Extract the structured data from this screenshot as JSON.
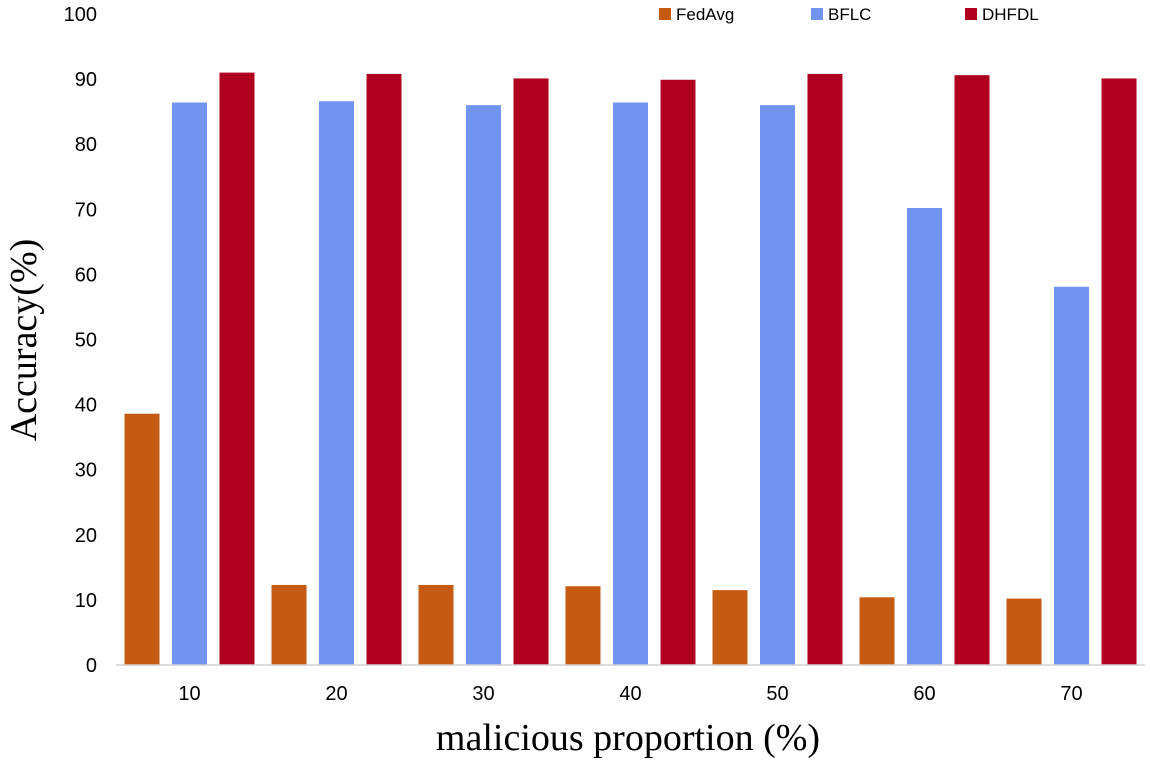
{
  "chart_data": {
    "type": "bar",
    "title": "",
    "xlabel": "malicious proportion (%)",
    "ylabel": "Accuracy(%)",
    "categories": [
      "10",
      "20",
      "30",
      "40",
      "50",
      "60",
      "70"
    ],
    "ylim": [
      0,
      100
    ],
    "yticks": [
      0,
      10,
      20,
      30,
      40,
      50,
      60,
      70,
      80,
      90,
      100
    ],
    "legend_position": "top-right",
    "series": [
      {
        "name": "FedAvg",
        "color": "#c55a11",
        "values": [
          38.6,
          12.3,
          12.3,
          12.1,
          11.5,
          10.4,
          10.2
        ]
      },
      {
        "name": "BFLC",
        "color": "#7094f0",
        "values": [
          86.4,
          86.6,
          86.0,
          86.4,
          86.0,
          70.2,
          58.1
        ]
      },
      {
        "name": "DHFDL",
        "color": "#b00020",
        "values": [
          91.0,
          90.8,
          90.1,
          89.9,
          90.8,
          90.6,
          90.1
        ]
      }
    ]
  }
}
